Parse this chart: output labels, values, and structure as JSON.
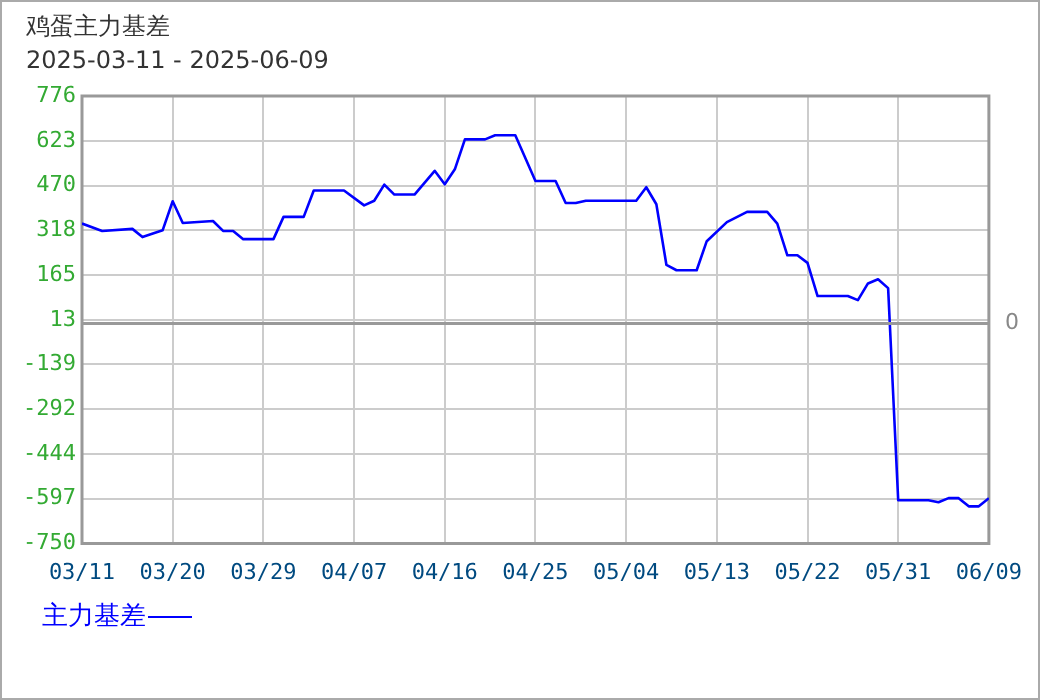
{
  "chart_data": {
    "type": "line",
    "title": "鸡蛋主力基差",
    "subtitle": "2025-03-11 - 2025-06-09",
    "x": [
      "2025-03-11",
      "2025-03-13",
      "2025-03-16",
      "2025-03-17",
      "2025-03-19",
      "2025-03-20",
      "2025-03-21",
      "2025-03-24",
      "2025-03-25",
      "2025-03-26",
      "2025-03-27",
      "2025-03-30",
      "2025-03-31",
      "2025-04-02",
      "2025-04-03",
      "2025-04-06",
      "2025-04-08",
      "2025-04-09",
      "2025-04-10",
      "2025-04-11",
      "2025-04-13",
      "2025-04-15",
      "2025-04-16",
      "2025-04-17",
      "2025-04-18",
      "2025-04-20",
      "2025-04-21",
      "2025-04-23",
      "2025-04-25",
      "2025-04-27",
      "2025-04-28",
      "2025-04-29",
      "2025-04-30",
      "2025-05-05",
      "2025-05-06",
      "2025-05-07",
      "2025-05-08",
      "2025-05-09",
      "2025-05-11",
      "2025-05-12",
      "2025-05-14",
      "2025-05-16",
      "2025-05-18",
      "2025-05-19",
      "2025-05-20",
      "2025-05-21",
      "2025-05-22",
      "2025-05-23",
      "2025-05-26",
      "2025-05-27",
      "2025-05-28",
      "2025-05-29",
      "2025-05-30",
      "2025-05-31",
      "2025-06-03",
      "2025-06-04",
      "2025-06-05",
      "2025-06-06",
      "2025-06-07",
      "2025-06-08",
      "2025-06-09"
    ],
    "series": [
      {
        "name": "主力基差",
        "color": "#0000ff",
        "values": [
          341,
          316,
          323,
          295,
          318,
          417,
          343,
          350,
          316,
          316,
          288,
          288,
          364,
          364,
          454,
          454,
          403,
          419,
          474,
          440,
          440,
          521,
          475,
          526,
          628,
          628,
          642,
          642,
          486,
          486,
          411,
          411,
          419,
          419,
          465,
          407,
          200,
          182,
          182,
          281,
          346,
          381,
          381,
          341,
          233,
          233,
          207,
          94,
          94,
          80,
          137,
          151,
          121,
          -602,
          -602,
          -609,
          -595,
          -595,
          -623,
          -623,
          -595
        ]
      }
    ],
    "xlim": [
      "2025-03-11",
      "2025-06-09"
    ],
    "xticks": [
      {
        "value": "2025-03-11",
        "label": "03/11"
      },
      {
        "value": "2025-03-20",
        "label": "03/20"
      },
      {
        "value": "2025-03-29",
        "label": "03/29"
      },
      {
        "value": "2025-04-07",
        "label": "04/07"
      },
      {
        "value": "2025-04-16",
        "label": "04/16"
      },
      {
        "value": "2025-04-25",
        "label": "04/25"
      },
      {
        "value": "2025-05-04",
        "label": "05/04"
      },
      {
        "value": "2025-05-13",
        "label": "05/13"
      },
      {
        "value": "2025-05-22",
        "label": "05/22"
      },
      {
        "value": "2025-05-31",
        "label": "05/31"
      },
      {
        "value": "2025-06-09",
        "label": "06/09"
      }
    ],
    "ylim": [
      -750,
      776
    ],
    "yticks": [
      -750,
      -597,
      -444,
      -292,
      -139,
      13,
      165,
      318,
      470,
      623,
      776
    ],
    "ref_lines": [
      {
        "axis": "y",
        "value": 0,
        "label": "0"
      }
    ],
    "grid": true,
    "legend": "bottom left",
    "marker": "none",
    "line_style": "solid"
  }
}
